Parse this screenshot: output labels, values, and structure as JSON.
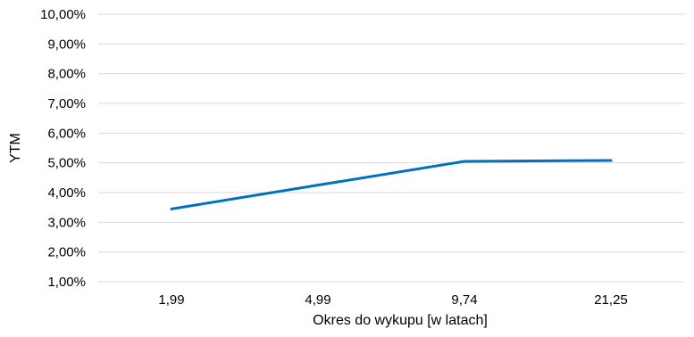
{
  "chart_data": {
    "type": "line",
    "title": "",
    "xlabel": "Okres do wykupu [w latach]",
    "ylabel": "YTM",
    "categories": [
      "1,99",
      "4,99",
      "9,74",
      "21,25"
    ],
    "series": [
      {
        "values": [
          3.45,
          4.25,
          5.05,
          5.08
        ]
      }
    ],
    "yticks": [
      "1,00%",
      "2,00%",
      "3,00%",
      "4,00%",
      "5,00%",
      "6,00%",
      "7,00%",
      "8,00%",
      "9,00%",
      "10,00%"
    ],
    "ylim": [
      1,
      10
    ],
    "grid": true,
    "legend": "none",
    "colors": {
      "series": "#0070c0",
      "grid": "#d9d9d9",
      "text": "#000000"
    }
  }
}
